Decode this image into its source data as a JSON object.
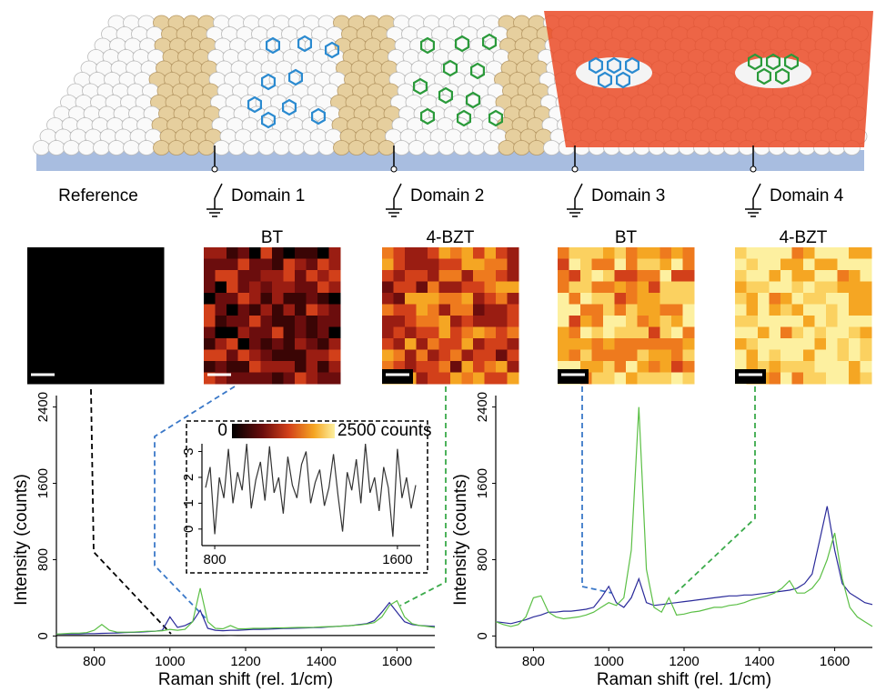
{
  "figure": {
    "domains": [
      "Reference",
      "Domain 1",
      "Domain 2",
      "Domain 3",
      "Domain 4"
    ],
    "map_labels": [
      "BT",
      "4-BZT",
      "BT",
      "4-BZT"
    ],
    "colorbar": {
      "ticks": [
        0,
        {
          "value": 2500,
          "label": "2500 counts"
        }
      ]
    }
  },
  "chart_data": [
    {
      "type": "line",
      "x": [
        700,
        720,
        740,
        760,
        780,
        800,
        820,
        840,
        860,
        880,
        900,
        920,
        940,
        960,
        980,
        1000,
        1020,
        1040,
        1060,
        1080,
        1100,
        1120,
        1140,
        1160,
        1180,
        1200,
        1220,
        1240,
        1260,
        1280,
        1300,
        1320,
        1340,
        1360,
        1380,
        1400,
        1420,
        1440,
        1460,
        1480,
        1500,
        1520,
        1540,
        1560,
        1580,
        1600,
        1620,
        1640,
        1660,
        1680,
        1700
      ],
      "series": [
        {
          "color": "#000000",
          "values": [
            5,
            6,
            5,
            6,
            5,
            6,
            5,
            6,
            5,
            6,
            5,
            6,
            5,
            6,
            5,
            6,
            5,
            6,
            5,
            6,
            5,
            6,
            5,
            6,
            5,
            6,
            5,
            6,
            5,
            6,
            5,
            6,
            5,
            6,
            5,
            6,
            5,
            6,
            5,
            6,
            5,
            6,
            5,
            6,
            5,
            6,
            5,
            6,
            5,
            6,
            5
          ]
        },
        {
          "color": "#2a2a9a",
          "values": [
            20,
            20,
            22,
            22,
            25,
            25,
            28,
            30,
            32,
            35,
            38,
            40,
            45,
            50,
            60,
            200,
            90,
            110,
            150,
            270,
            80,
            60,
            55,
            60,
            60,
            65,
            70,
            70,
            72,
            75,
            78,
            80,
            82,
            85,
            88,
            90,
            95,
            100,
            105,
            110,
            120,
            130,
            160,
            250,
            350,
            250,
            150,
            120,
            110,
            105,
            100
          ]
        },
        {
          "color": "#5bbf45",
          "values": [
            20,
            25,
            30,
            30,
            35,
            60,
            120,
            60,
            40,
            40,
            40,
            45,
            50,
            50,
            55,
            70,
            60,
            70,
            150,
            500,
            150,
            80,
            75,
            110,
            75,
            75,
            80,
            80,
            82,
            85,
            85,
            88,
            90,
            90,
            92,
            95,
            98,
            100,
            105,
            110,
            115,
            125,
            140,
            200,
            320,
            370,
            200,
            130,
            110,
            100,
            90
          ]
        }
      ],
      "xlim": [
        700,
        1700
      ],
      "ylim": [
        -120,
        2520
      ],
      "xticks": [
        800,
        1000,
        1200,
        1400,
        1600
      ],
      "yticks": [
        0,
        800,
        1600,
        2400
      ],
      "xlabel": "Raman shift (rel. 1/cm)",
      "ylabel": "Intensity (counts)"
    },
    {
      "type": "line",
      "x": [
        760,
        780,
        800,
        820,
        840,
        860,
        880,
        900,
        920,
        940,
        960,
        980,
        1000,
        1020,
        1040,
        1060,
        1080,
        1100,
        1120,
        1140,
        1160,
        1180,
        1200,
        1220,
        1240,
        1260,
        1280,
        1300,
        1320,
        1340,
        1360,
        1380,
        1400,
        1420,
        1440,
        1460,
        1480,
        1500,
        1520,
        1540,
        1560,
        1580,
        1600,
        1620,
        1640,
        1660,
        1680
      ],
      "series": [
        {
          "color": "#333333",
          "values": [
            1.6,
            2.4,
            -0.2,
            2.0,
            1.2,
            3.1,
            1.0,
            2.2,
            1.5,
            3.3,
            0.8,
            1.9,
            2.6,
            1.1,
            3.2,
            1.4,
            2.0,
            0.6,
            2.8,
            1.7,
            1.2,
            2.5,
            3.0,
            1.0,
            1.8,
            2.3,
            0.9,
            1.6,
            2.9,
            1.3,
            -0.1,
            2.2,
            1.5,
            2.7,
            1.0,
            3.3,
            1.4,
            2.0,
            0.7,
            2.4,
            1.6,
            -0.3,
            3.1,
            1.2,
            2.0,
            0.8,
            1.7
          ]
        }
      ],
      "xlim": [
        744,
        1700
      ],
      "ylim": [
        -0.64,
        3.3
      ],
      "xticks": [
        800,
        1600
      ],
      "yticks": [
        0,
        1,
        2,
        3
      ]
    },
    {
      "type": "line",
      "x": [
        700,
        720,
        740,
        760,
        780,
        800,
        820,
        840,
        860,
        880,
        900,
        920,
        940,
        960,
        980,
        1000,
        1020,
        1040,
        1060,
        1080,
        1100,
        1120,
        1140,
        1160,
        1180,
        1200,
        1220,
        1240,
        1260,
        1280,
        1300,
        1320,
        1340,
        1360,
        1380,
        1400,
        1420,
        1440,
        1460,
        1480,
        1500,
        1520,
        1540,
        1560,
        1580,
        1600,
        1620,
        1640,
        1660,
        1680,
        1700
      ],
      "series": [
        {
          "color": "#2a2a9a",
          "values": [
            150,
            140,
            130,
            150,
            170,
            200,
            220,
            250,
            250,
            260,
            260,
            270,
            280,
            300,
            400,
            520,
            350,
            300,
            400,
            600,
            350,
            320,
            330,
            340,
            350,
            360,
            370,
            380,
            390,
            400,
            410,
            420,
            420,
            430,
            430,
            440,
            450,
            460,
            470,
            480,
            500,
            550,
            650,
            1000,
            1360,
            900,
            550,
            450,
            400,
            350,
            330
          ]
        },
        {
          "color": "#5bbf45",
          "values": [
            150,
            120,
            100,
            120,
            200,
            400,
            420,
            250,
            200,
            180,
            190,
            200,
            220,
            250,
            300,
            350,
            320,
            400,
            900,
            2400,
            700,
            300,
            250,
            400,
            220,
            230,
            250,
            260,
            280,
            300,
            300,
            320,
            330,
            350,
            380,
            400,
            420,
            450,
            500,
            580,
            450,
            450,
            500,
            600,
            800,
            1080,
            600,
            300,
            200,
            150,
            100
          ]
        }
      ],
      "xlim": [
        700,
        1700
      ],
      "ylim": [
        -120,
        2520
      ],
      "xticks": [
        800,
        1000,
        1200,
        1400,
        1600
      ],
      "yticks": [
        0,
        800,
        1600,
        2400
      ],
      "xlabel": "Raman shift (rel. 1/cm)",
      "ylabel": "Intensity (counts)"
    }
  ]
}
